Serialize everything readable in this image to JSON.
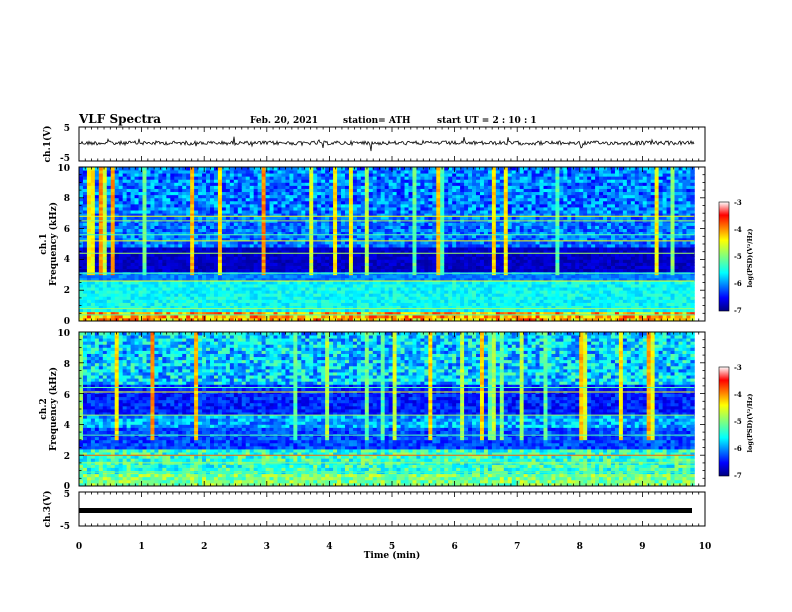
{
  "header": {
    "title": "VLF Spectra",
    "date": "Feb. 20, 2021",
    "station": "station= ATH",
    "start": "start  UT =  2 : 10 : 1"
  },
  "chart_data": [
    {
      "type": "line",
      "name": "ch.1 waveform",
      "ylabel": "ch.1(V)",
      "ylim": [
        -5,
        5
      ],
      "yticks": [
        "5",
        "-5"
      ],
      "xlim": [
        0,
        10
      ]
    },
    {
      "type": "heatmap",
      "name": "ch.1 spectrogram",
      "ylabel": "ch.1",
      "ylabel2": "Frequency  (kHz)",
      "ylim": [
        0,
        10
      ],
      "yticks": [
        "0",
        "2",
        "4",
        "6",
        "8",
        "10"
      ],
      "xlim": [
        0,
        10
      ],
      "data_end_min": 9.83,
      "colorbar": {
        "label": "log(PSD)(V²/Hz)",
        "range": [
          -7,
          -3
        ],
        "ticks": [
          "-3",
          "-4",
          "-5",
          "-6",
          "-7"
        ]
      }
    },
    {
      "type": "heatmap",
      "name": "ch.2 spectrogram",
      "ylabel": "ch.2",
      "ylabel2": "Frequency  (kHz)",
      "ylim": [
        0,
        10
      ],
      "yticks": [
        "0",
        "2",
        "4",
        "6",
        "8",
        "10"
      ],
      "xlim": [
        0,
        10
      ],
      "data_end_min": 9.83,
      "colorbar": {
        "label": "log(PSD)(V²/Hz)",
        "range": [
          -7,
          -3
        ],
        "ticks": [
          "-3",
          "-4",
          "-5",
          "-6",
          "-7"
        ]
      }
    },
    {
      "type": "line",
      "name": "ch.3 waveform",
      "ylabel": "ch.3(V)",
      "ylim": [
        -5,
        5
      ],
      "yticks": [
        "5",
        "-5"
      ],
      "xlim": [
        0,
        10
      ]
    }
  ],
  "xaxis": {
    "label": "Time  (min)",
    "ticks": [
      "0",
      "1",
      "2",
      "3",
      "4",
      "5",
      "6",
      "7",
      "8",
      "9",
      "10"
    ]
  },
  "colors": {
    "jet": [
      "#00007f",
      "#0000ff",
      "#007fff",
      "#00ffff",
      "#7fff7f",
      "#ffff00",
      "#ff7f00",
      "#ff0000",
      "#7f0000"
    ]
  }
}
